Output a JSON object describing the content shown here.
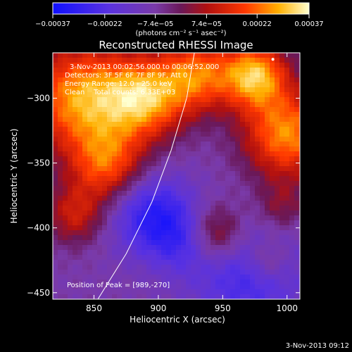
{
  "chart_data": {
    "type": "heatmap",
    "title": "Reconstructed RHESSI Image",
    "xlabel": "Heliocentric X (arcsec)",
    "ylabel": "Heliocentric Y (arcsec)",
    "xlim": [
      818,
      1010
    ],
    "ylim": [
      -455,
      -265
    ],
    "xticks": [
      850,
      900,
      950,
      1000
    ],
    "yticks": [
      -300,
      -350,
      -400,
      -450
    ],
    "xtick_labels": [
      "850",
      "900",
      "950",
      "1000"
    ],
    "ytick_labels": [
      "−300",
      "−350",
      "−400",
      "−450"
    ],
    "colorbar": {
      "range": [
        -0.00037,
        0.00037
      ],
      "ticks": [
        -0.00037,
        -0.00022,
        -7.4e-05,
        7.4e-05,
        0.00022,
        0.00037
      ],
      "tick_labels": [
        "−0.00037",
        "−0.00022",
        "−7.4e−05",
        "7.4e−05",
        "0.00022",
        "0.00037"
      ],
      "unit": "(photons cm⁻² s⁻¹ asec⁻²)"
    },
    "annotations": [
      "3-Nov-2013 00:02:56.000 to 00:06:52.000",
      "Detectors: 3F 5F 6F 7F 8F 9F, Att 0",
      "Energy Range: 12.0 - 25.0 keV",
      "Clean    Total counts: 6.33E+03"
    ],
    "peak_label": "Position of Peak = [989,-270]",
    "peak": [
      989,
      -270
    ],
    "limb_curve": [
      [
        853,
        -455
      ],
      [
        875,
        -420
      ],
      [
        895,
        -380
      ],
      [
        910,
        -340
      ],
      [
        922,
        -300
      ],
      [
        928,
        -265
      ]
    ],
    "hot_regions": [
      {
        "x": 840,
        "y": -300,
        "r": 30,
        "v": 0.00035
      },
      {
        "x": 890,
        "y": -300,
        "r": 22,
        "v": 0.00032
      },
      {
        "x": 930,
        "y": -282,
        "r": 20,
        "v": 0.00028
      },
      {
        "x": 975,
        "y": -282,
        "r": 18,
        "v": 0.00036
      },
      {
        "x": 1000,
        "y": -328,
        "r": 24,
        "v": 0.00033
      },
      {
        "x": 860,
        "y": -352,
        "r": 20,
        "v": 0.00025
      },
      {
        "x": 835,
        "y": -390,
        "r": 16,
        "v": 0.00018
      },
      {
        "x": 945,
        "y": -405,
        "r": 16,
        "v": 0.00022
      },
      {
        "x": 985,
        "y": -425,
        "r": 12,
        "v": 0.00014
      },
      {
        "x": 995,
        "y": -385,
        "r": 14,
        "v": 0.00012
      }
    ],
    "cold_regions": [
      {
        "x": 895,
        "y": -390,
        "r": 22,
        "v": -0.00022
      },
      {
        "x": 970,
        "y": -435,
        "r": 30,
        "v": -0.00018
      },
      {
        "x": 920,
        "y": -410,
        "r": 18,
        "v": -0.00012
      }
    ]
  },
  "footer": {
    "date": "3-Nov-2013 09:12"
  }
}
